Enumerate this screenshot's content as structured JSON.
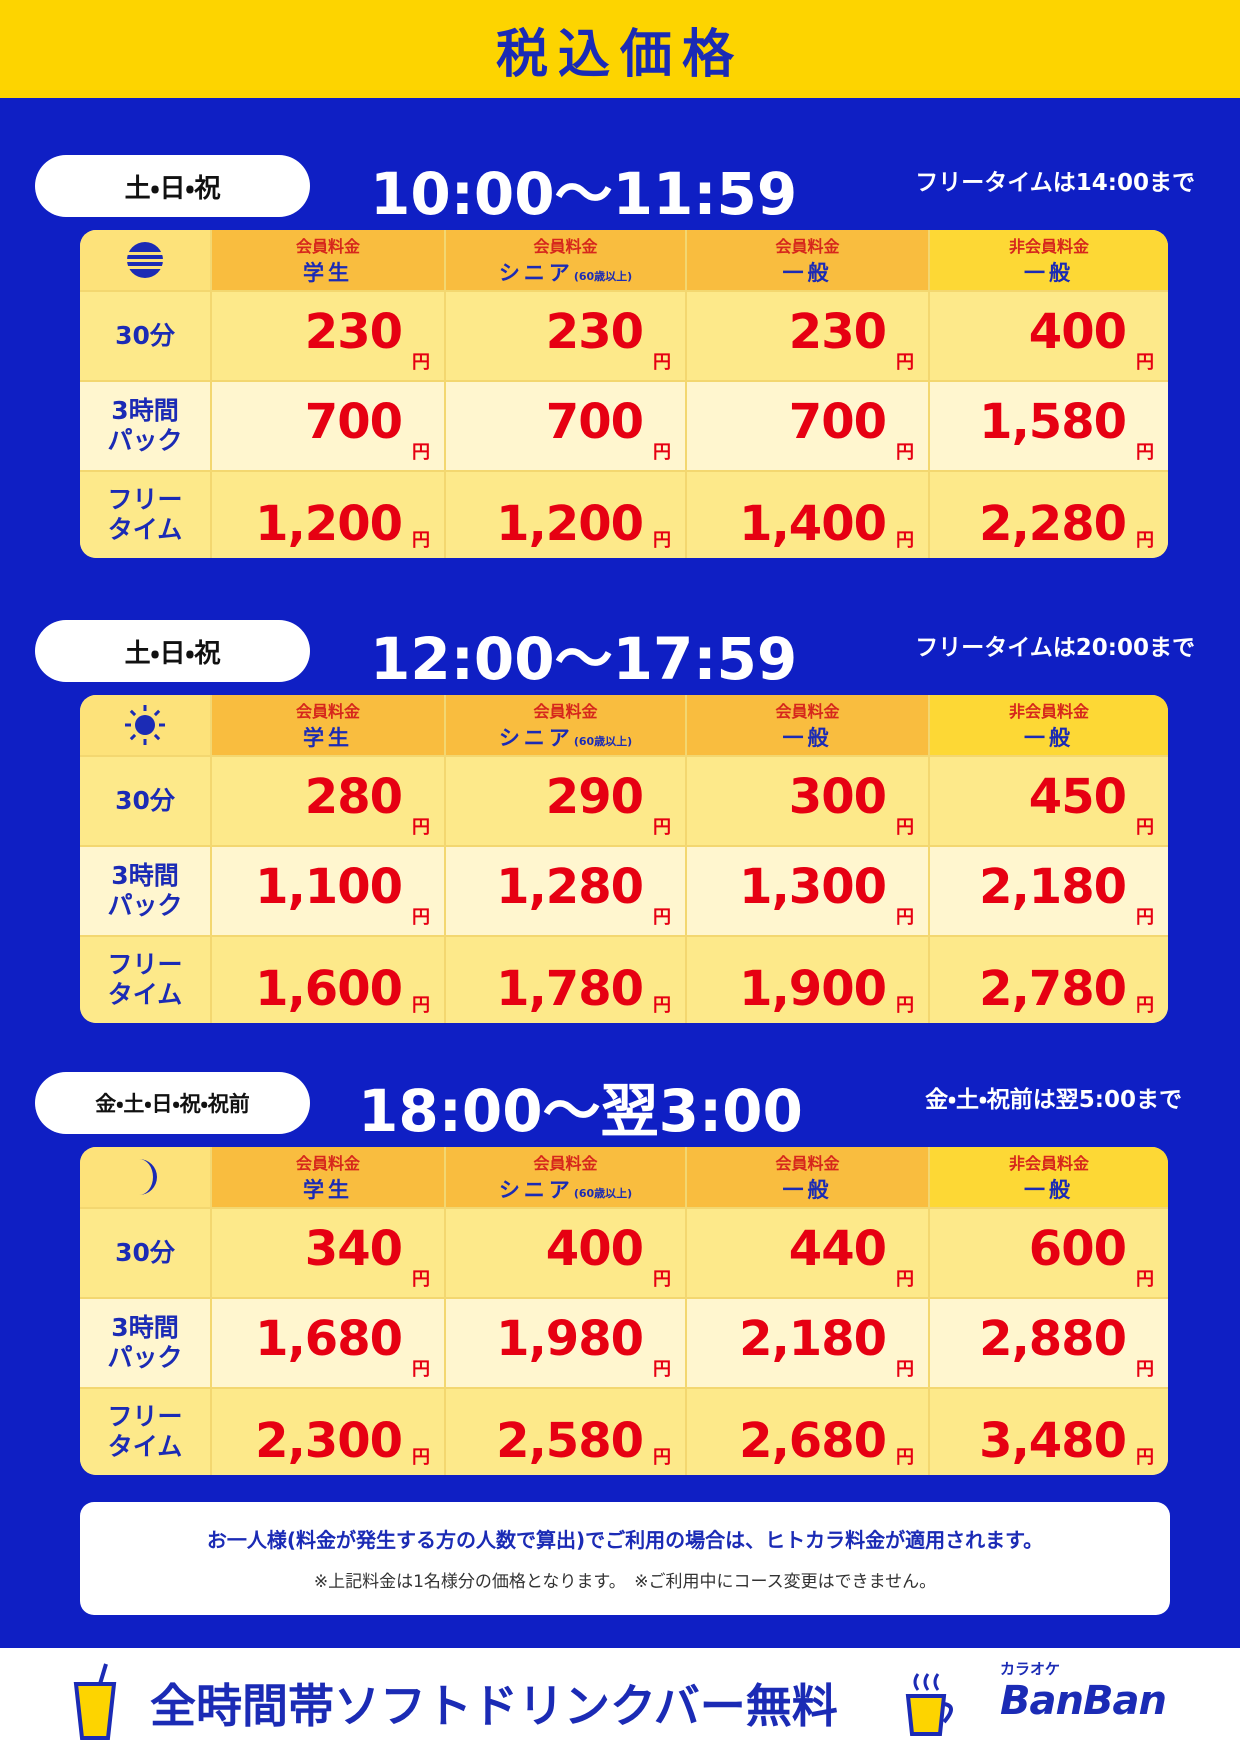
{
  "header": {
    "title": "税込価格"
  },
  "columns": [
    {
      "top": "会員料金",
      "main": "学生"
    },
    {
      "top": "会員料金",
      "main": "シニア",
      "sub": "(60歳以上)"
    },
    {
      "top": "会員料金",
      "main": "一般"
    },
    {
      "top": "非会員料金",
      "main": "一般"
    }
  ],
  "row_labels": [
    [
      "30分"
    ],
    [
      "3時間",
      "パック"
    ],
    [
      "フリー",
      "タイム"
    ]
  ],
  "unit": "円",
  "sections": [
    {
      "days": "土・日・祝",
      "time": "10:00〜11:59",
      "note": "フリータイムは14:00まで",
      "prices": [
        [
          "230",
          "230",
          "230",
          "400"
        ],
        [
          "700",
          "700",
          "700",
          "1,580"
        ],
        [
          "1,200",
          "1,200",
          "1,400",
          "2,280"
        ]
      ]
    },
    {
      "days": "土・日・祝",
      "time": "12:00〜17:59",
      "note": "フリータイムは20:00まで",
      "prices": [
        [
          "280",
          "290",
          "300",
          "450"
        ],
        [
          "1,100",
          "1,280",
          "1,300",
          "2,180"
        ],
        [
          "1,600",
          "1,780",
          "1,900",
          "2,780"
        ]
      ]
    },
    {
      "days": "金・土・日・祝・祝前",
      "time": "18:00〜翌3:00",
      "note": "金・土・祝前は翌5:00まで",
      "prices": [
        [
          "340",
          "400",
          "440",
          "600"
        ],
        [
          "1,680",
          "1,980",
          "2,180",
          "2,880"
        ],
        [
          "2,300",
          "2,580",
          "2,680",
          "3,480"
        ]
      ]
    }
  ],
  "notice": {
    "line1": "お一人様(料金が発生する方の人数で算出)でご利用の場合は、ヒトカラ料金が適用されます。",
    "line2": "※上記料金は1名様分の価格となります。　※ご利用中にコース変更はできません。"
  },
  "footer": {
    "text": "全時間帯ソフトドリンクバー無料",
    "logo_small": "カラオケ",
    "logo": "BanBan"
  }
}
